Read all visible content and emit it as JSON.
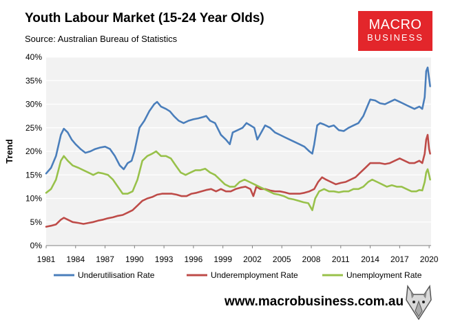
{
  "header": {
    "title": "Youth Labour Market (15-24 Year Olds)",
    "subtitle": "Source: Australian Bureau of Statistics"
  },
  "logo": {
    "line1": "MACRO",
    "line2": "BUSINESS",
    "color": "#e3262b"
  },
  "footer": {
    "website": "www.macrobusiness.com.au"
  },
  "chart_data": {
    "type": "line",
    "ylabel": "Trend",
    "xlim": [
      1981,
      2020.2
    ],
    "ylim": [
      0,
      40
    ],
    "x_ticks": [
      "1981",
      "1984",
      "1987",
      "1990",
      "1993",
      "1996",
      "1999",
      "2002",
      "2005",
      "2008",
      "2011",
      "2014",
      "2017",
      "2020"
    ],
    "y_ticks": [
      "0%",
      "5%",
      "10%",
      "15%",
      "20%",
      "25%",
      "30%",
      "35%",
      "40%"
    ],
    "grid": "horizontal",
    "background": "#f2f2f2",
    "legend_position": "bottom",
    "series": [
      {
        "name": "Underutilisation Rate",
        "color": "#4a7ebb",
        "points": [
          [
            1981.0,
            15.3
          ],
          [
            1981.5,
            16.5
          ],
          [
            1982.0,
            19.0
          ],
          [
            1982.5,
            23.5
          ],
          [
            1982.8,
            24.8
          ],
          [
            1983.2,
            24.0
          ],
          [
            1983.6,
            22.5
          ],
          [
            1984.0,
            21.5
          ],
          [
            1984.5,
            20.5
          ],
          [
            1985.0,
            19.7
          ],
          [
            1985.5,
            20.0
          ],
          [
            1986.0,
            20.5
          ],
          [
            1986.5,
            20.8
          ],
          [
            1987.0,
            21.0
          ],
          [
            1987.5,
            20.5
          ],
          [
            1988.0,
            19.0
          ],
          [
            1988.5,
            17.0
          ],
          [
            1988.9,
            16.2
          ],
          [
            1989.3,
            17.5
          ],
          [
            1989.7,
            18.0
          ],
          [
            1990.0,
            20.0
          ],
          [
            1990.5,
            25.0
          ],
          [
            1991.0,
            26.5
          ],
          [
            1991.5,
            28.5
          ],
          [
            1992.0,
            30.0
          ],
          [
            1992.3,
            30.5
          ],
          [
            1992.7,
            29.5
          ],
          [
            1993.2,
            29.0
          ],
          [
            1993.6,
            28.5
          ],
          [
            1994.0,
            27.5
          ],
          [
            1994.5,
            26.5
          ],
          [
            1995.0,
            26.0
          ],
          [
            1995.5,
            26.5
          ],
          [
            1996.0,
            26.8
          ],
          [
            1996.5,
            27.0
          ],
          [
            1997.0,
            27.3
          ],
          [
            1997.3,
            27.5
          ],
          [
            1997.7,
            26.5
          ],
          [
            1998.2,
            26.0
          ],
          [
            1998.8,
            23.5
          ],
          [
            1999.3,
            22.5
          ],
          [
            1999.7,
            21.5
          ],
          [
            2000.0,
            24.0
          ],
          [
            2000.5,
            24.5
          ],
          [
            2001.0,
            25.0
          ],
          [
            2001.4,
            26.0
          ],
          [
            2001.8,
            25.5
          ],
          [
            2002.2,
            25.0
          ],
          [
            2002.5,
            22.5
          ],
          [
            2002.9,
            24.0
          ],
          [
            2003.3,
            25.5
          ],
          [
            2003.8,
            25.0
          ],
          [
            2004.3,
            24.0
          ],
          [
            2004.8,
            23.5
          ],
          [
            2005.3,
            23.0
          ],
          [
            2005.8,
            22.5
          ],
          [
            2006.3,
            22.0
          ],
          [
            2006.8,
            21.5
          ],
          [
            2007.3,
            21.0
          ],
          [
            2007.8,
            20.0
          ],
          [
            2008.1,
            19.5
          ],
          [
            2008.3,
            21.5
          ],
          [
            2008.6,
            25.5
          ],
          [
            2008.9,
            26.0
          ],
          [
            2009.3,
            25.7
          ],
          [
            2009.8,
            25.2
          ],
          [
            2010.3,
            25.5
          ],
          [
            2010.8,
            24.5
          ],
          [
            2011.3,
            24.3
          ],
          [
            2011.8,
            25.0
          ],
          [
            2012.3,
            25.5
          ],
          [
            2012.8,
            26.0
          ],
          [
            2013.3,
            27.5
          ],
          [
            2013.7,
            29.5
          ],
          [
            2014.0,
            31.0
          ],
          [
            2014.5,
            30.8
          ],
          [
            2015.0,
            30.2
          ],
          [
            2015.5,
            30.0
          ],
          [
            2016.0,
            30.5
          ],
          [
            2016.5,
            31.0
          ],
          [
            2017.0,
            30.5
          ],
          [
            2017.5,
            30.0
          ],
          [
            2018.0,
            29.5
          ],
          [
            2018.5,
            29.0
          ],
          [
            2019.0,
            29.5
          ],
          [
            2019.3,
            29.0
          ],
          [
            2019.55,
            31.5
          ],
          [
            2019.7,
            37.0
          ],
          [
            2019.85,
            37.8
          ],
          [
            2020.0,
            35.5
          ],
          [
            2020.1,
            33.8
          ]
        ]
      },
      {
        "name": "Underemployment Rate",
        "color": "#be4b48",
        "points": [
          [
            1981.0,
            4.0
          ],
          [
            1981.5,
            4.2
          ],
          [
            1982.0,
            4.5
          ],
          [
            1982.5,
            5.5
          ],
          [
            1982.8,
            5.9
          ],
          [
            1983.2,
            5.5
          ],
          [
            1983.7,
            5.0
          ],
          [
            1984.3,
            4.8
          ],
          [
            1984.8,
            4.6
          ],
          [
            1985.3,
            4.8
          ],
          [
            1985.8,
            5.0
          ],
          [
            1986.3,
            5.3
          ],
          [
            1986.8,
            5.5
          ],
          [
            1987.3,
            5.8
          ],
          [
            1987.8,
            6.0
          ],
          [
            1988.3,
            6.3
          ],
          [
            1988.8,
            6.5
          ],
          [
            1989.3,
            7.0
          ],
          [
            1989.8,
            7.5
          ],
          [
            1990.3,
            8.5
          ],
          [
            1990.8,
            9.5
          ],
          [
            1991.3,
            10.0
          ],
          [
            1991.8,
            10.3
          ],
          [
            1992.3,
            10.8
          ],
          [
            1992.8,
            11.0
          ],
          [
            1993.3,
            11.0
          ],
          [
            1993.8,
            11.0
          ],
          [
            1994.3,
            10.8
          ],
          [
            1994.8,
            10.5
          ],
          [
            1995.3,
            10.5
          ],
          [
            1995.8,
            11.0
          ],
          [
            1996.3,
            11.2
          ],
          [
            1996.8,
            11.5
          ],
          [
            1997.3,
            11.8
          ],
          [
            1997.8,
            12.0
          ],
          [
            1998.3,
            11.5
          ],
          [
            1998.8,
            12.0
          ],
          [
            1999.3,
            11.5
          ],
          [
            1999.8,
            11.5
          ],
          [
            2000.3,
            12.0
          ],
          [
            2000.8,
            12.3
          ],
          [
            2001.3,
            12.5
          ],
          [
            2001.8,
            12.0
          ],
          [
            2002.1,
            10.5
          ],
          [
            2002.4,
            12.5
          ],
          [
            2002.8,
            12.0
          ],
          [
            2003.3,
            12.0
          ],
          [
            2003.8,
            11.7
          ],
          [
            2004.3,
            11.5
          ],
          [
            2004.8,
            11.5
          ],
          [
            2005.3,
            11.3
          ],
          [
            2005.8,
            11.0
          ],
          [
            2006.3,
            11.0
          ],
          [
            2006.8,
            11.0
          ],
          [
            2007.3,
            11.2
          ],
          [
            2007.8,
            11.5
          ],
          [
            2008.3,
            12.0
          ],
          [
            2008.7,
            13.5
          ],
          [
            2009.1,
            14.5
          ],
          [
            2009.5,
            14.0
          ],
          [
            2010.0,
            13.5
          ],
          [
            2010.5,
            13.0
          ],
          [
            2011.0,
            13.3
          ],
          [
            2011.5,
            13.5
          ],
          [
            2012.0,
            14.0
          ],
          [
            2012.5,
            14.5
          ],
          [
            2013.0,
            15.5
          ],
          [
            2013.5,
            16.5
          ],
          [
            2014.0,
            17.5
          ],
          [
            2014.5,
            17.5
          ],
          [
            2015.0,
            17.5
          ],
          [
            2015.5,
            17.3
          ],
          [
            2016.0,
            17.5
          ],
          [
            2016.5,
            18.0
          ],
          [
            2017.0,
            18.5
          ],
          [
            2017.5,
            18.0
          ],
          [
            2018.0,
            17.5
          ],
          [
            2018.5,
            17.5
          ],
          [
            2019.0,
            18.0
          ],
          [
            2019.3,
            17.5
          ],
          [
            2019.55,
            19.5
          ],
          [
            2019.7,
            22.5
          ],
          [
            2019.85,
            23.5
          ],
          [
            2020.0,
            20.5
          ],
          [
            2020.1,
            19.5
          ]
        ]
      },
      {
        "name": "Unemployment Rate",
        "color": "#98c14a",
        "points": [
          [
            1981.0,
            11.2
          ],
          [
            1981.5,
            12.0
          ],
          [
            1982.0,
            14.0
          ],
          [
            1982.5,
            18.0
          ],
          [
            1982.8,
            19.0
          ],
          [
            1983.2,
            18.0
          ],
          [
            1983.7,
            17.0
          ],
          [
            1984.3,
            16.5
          ],
          [
            1984.8,
            16.0
          ],
          [
            1985.3,
            15.5
          ],
          [
            1985.8,
            15.0
          ],
          [
            1986.3,
            15.5
          ],
          [
            1986.8,
            15.3
          ],
          [
            1987.3,
            15.0
          ],
          [
            1987.8,
            14.0
          ],
          [
            1988.3,
            12.5
          ],
          [
            1988.8,
            11.0
          ],
          [
            1989.3,
            11.0
          ],
          [
            1989.8,
            11.5
          ],
          [
            1990.3,
            14.0
          ],
          [
            1990.8,
            18.0
          ],
          [
            1991.3,
            19.0
          ],
          [
            1991.8,
            19.5
          ],
          [
            1992.2,
            20.0
          ],
          [
            1992.7,
            19.0
          ],
          [
            1993.2,
            19.0
          ],
          [
            1993.7,
            18.5
          ],
          [
            1994.2,
            17.0
          ],
          [
            1994.7,
            15.5
          ],
          [
            1995.2,
            15.0
          ],
          [
            1995.7,
            15.5
          ],
          [
            1996.2,
            16.0
          ],
          [
            1996.7,
            16.0
          ],
          [
            1997.2,
            16.3
          ],
          [
            1997.7,
            15.5
          ],
          [
            1998.2,
            15.0
          ],
          [
            1998.7,
            14.0
          ],
          [
            1999.2,
            13.0
          ],
          [
            1999.7,
            12.5
          ],
          [
            2000.2,
            12.5
          ],
          [
            2000.7,
            13.5
          ],
          [
            2001.2,
            14.0
          ],
          [
            2001.7,
            13.5
          ],
          [
            2002.2,
            13.0
          ],
          [
            2002.7,
            12.5
          ],
          [
            2003.2,
            12.0
          ],
          [
            2003.7,
            11.5
          ],
          [
            2004.2,
            11.0
          ],
          [
            2004.7,
            10.8
          ],
          [
            2005.2,
            10.5
          ],
          [
            2005.7,
            10.0
          ],
          [
            2006.2,
            9.8
          ],
          [
            2006.7,
            9.5
          ],
          [
            2007.2,
            9.2
          ],
          [
            2007.7,
            9.0
          ],
          [
            2008.1,
            7.5
          ],
          [
            2008.4,
            10.0
          ],
          [
            2008.8,
            11.5
          ],
          [
            2009.3,
            12.0
          ],
          [
            2009.8,
            11.5
          ],
          [
            2010.3,
            11.5
          ],
          [
            2010.8,
            11.3
          ],
          [
            2011.3,
            11.5
          ],
          [
            2011.8,
            11.5
          ],
          [
            2012.3,
            12.0
          ],
          [
            2012.8,
            12.0
          ],
          [
            2013.3,
            12.5
          ],
          [
            2013.8,
            13.5
          ],
          [
            2014.2,
            14.0
          ],
          [
            2014.7,
            13.5
          ],
          [
            2015.2,
            13.0
          ],
          [
            2015.7,
            12.5
          ],
          [
            2016.2,
            12.8
          ],
          [
            2016.7,
            12.5
          ],
          [
            2017.2,
            12.5
          ],
          [
            2017.7,
            12.0
          ],
          [
            2018.2,
            11.5
          ],
          [
            2018.7,
            11.5
          ],
          [
            2019.0,
            11.8
          ],
          [
            2019.3,
            11.7
          ],
          [
            2019.55,
            13.5
          ],
          [
            2019.7,
            15.5
          ],
          [
            2019.85,
            16.2
          ],
          [
            2020.0,
            15.0
          ],
          [
            2020.1,
            14.0
          ]
        ]
      }
    ]
  }
}
